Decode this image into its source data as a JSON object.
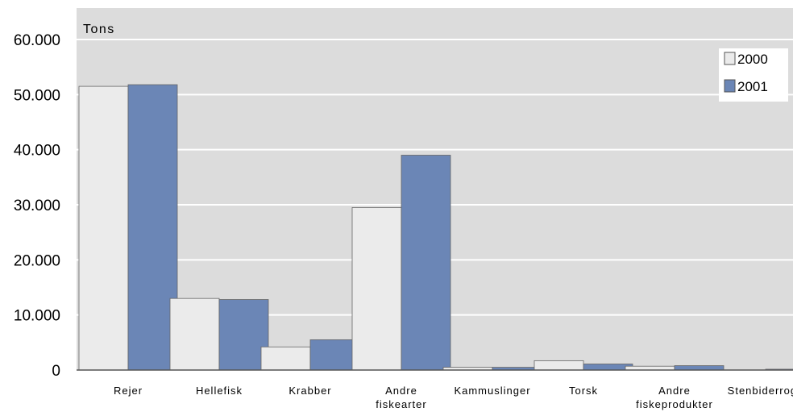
{
  "chart_data": {
    "type": "bar",
    "ylabel": "Tons",
    "ylim": [
      0,
      60000
    ],
    "yticks": [
      {
        "value": 0,
        "label": "0"
      },
      {
        "value": 10000,
        "label": "10.000"
      },
      {
        "value": 20000,
        "label": "20.000"
      },
      {
        "value": 30000,
        "label": "30.000"
      },
      {
        "value": 40000,
        "label": "40.000"
      },
      {
        "value": 50000,
        "label": "50.000"
      },
      {
        "value": 60000,
        "label": "60.000"
      }
    ],
    "categories": [
      [
        "Rejer"
      ],
      [
        "Hellefisk"
      ],
      [
        "Krabber"
      ],
      [
        "Andre",
        "fiskearter"
      ],
      [
        "Kammuslinger"
      ],
      [
        "Torsk"
      ],
      [
        "Andre",
        "fiskeprodukter"
      ],
      [
        "Stenbiderrogn"
      ]
    ],
    "series": [
      {
        "name": "2000",
        "color": "#ebebeb",
        "values": [
          51500,
          13000,
          4200,
          29500,
          500,
          1700,
          700,
          0
        ]
      },
      {
        "name": "2001",
        "color": "#6b86b6",
        "values": [
          51800,
          12800,
          5500,
          39000,
          500,
          1100,
          800,
          150
        ]
      }
    ],
    "grid": true,
    "legend_position": "top-right",
    "plot_background": "#dcdcdc"
  }
}
